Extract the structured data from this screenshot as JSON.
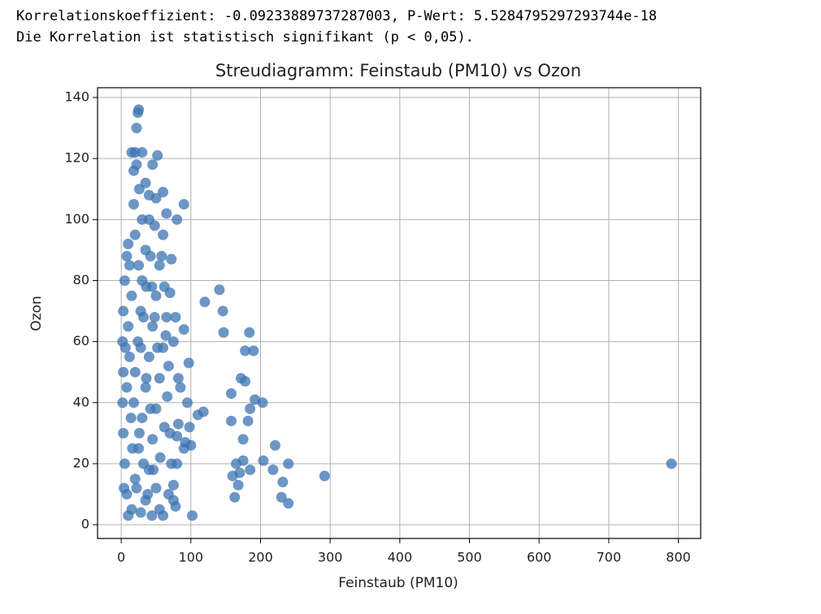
{
  "output": {
    "lines": [
      "Korrelationskoeffizient: -0.09233889737287003, P-Wert: 5.5284795297293744e-18",
      "Die Korrelation ist statistisch signifikant (p < 0,05)."
    ]
  },
  "chart_data": {
    "type": "scatter",
    "title": "Streudiagramm: Feinstaub (PM10) vs Ozon",
    "x_label": "Feinstaub (PM10)",
    "y_label": "Ozon",
    "color": "#3b73b1",
    "grid": true,
    "xlim": [
      -34,
      832
    ],
    "ylim": [
      -4.5,
      143.2
    ],
    "xticks": [
      0,
      100,
      200,
      300,
      400,
      500,
      600,
      700,
      800
    ],
    "yticks": [
      0,
      20,
      40,
      60,
      80,
      100,
      120,
      140
    ],
    "x": [
      790,
      292,
      240,
      240,
      232,
      230,
      218,
      221,
      203,
      204,
      192,
      190,
      185,
      182,
      184,
      185,
      178,
      178,
      172,
      175,
      175,
      170,
      168,
      165,
      163,
      160,
      158,
      158,
      146,
      147,
      141,
      120,
      118,
      110,
      102,
      100,
      98,
      97,
      95,
      90,
      90,
      90,
      92,
      85,
      82,
      82,
      80,
      80,
      75,
      78,
      75,
      80,
      72,
      70,
      75,
      78,
      25,
      24,
      22,
      20,
      15,
      30,
      18,
      52,
      45,
      35,
      50,
      60,
      65,
      30,
      10,
      12,
      5,
      3,
      2,
      3,
      2,
      3,
      5,
      8,
      10,
      15,
      20,
      25,
      30,
      35,
      40,
      45,
      50,
      55,
      60,
      20,
      25,
      15,
      10,
      12,
      8,
      14,
      16,
      22,
      28,
      35,
      40,
      45,
      50,
      55,
      60,
      65,
      62,
      58,
      40,
      35,
      30,
      28,
      24,
      20,
      18,
      26,
      32,
      38,
      44,
      50,
      56,
      62,
      66,
      68,
      64,
      70,
      72,
      68,
      60,
      55,
      48,
      42,
      36,
      32,
      28,
      36,
      42,
      46,
      52,
      48,
      44,
      40,
      26,
      18,
      22,
      8,
      6,
      4
    ],
    "values": [
      20,
      16,
      7,
      20,
      14,
      9,
      18,
      26,
      40,
      21,
      41,
      57,
      38,
      34,
      63,
      18,
      57,
      47,
      48,
      28,
      21,
      17,
      13,
      20,
      9,
      16,
      34,
      43,
      70,
      63,
      77,
      73,
      37,
      36,
      3,
      26,
      32,
      53,
      40,
      105,
      64,
      25,
      27,
      45,
      48,
      33,
      20,
      29,
      13,
      68,
      60,
      100,
      87,
      76,
      8,
      6,
      136,
      135,
      130,
      122,
      122,
      122,
      116,
      121,
      118,
      112,
      107,
      109,
      102,
      100,
      92,
      85,
      80,
      70,
      60,
      50,
      40,
      30,
      20,
      10,
      3,
      5,
      15,
      25,
      35,
      45,
      55,
      65,
      75,
      85,
      95,
      95,
      85,
      75,
      65,
      55,
      45,
      35,
      25,
      12,
      4,
      8,
      18,
      28,
      38,
      48,
      58,
      68,
      78,
      88,
      100,
      90,
      80,
      70,
      60,
      50,
      40,
      30,
      20,
      10,
      3,
      12,
      22,
      32,
      42,
      52,
      62,
      30,
      20,
      10,
      3,
      5,
      98,
      88,
      78,
      68,
      58,
      48,
      38,
      18,
      58,
      68,
      78,
      108,
      110,
      105,
      118,
      88,
      58,
      12
    ]
  }
}
